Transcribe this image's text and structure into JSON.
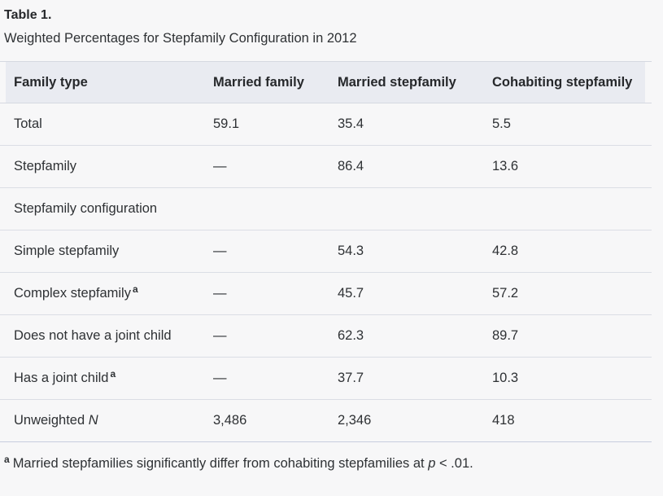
{
  "page": {
    "title": "Table 1.",
    "subtitle": "Weighted Percentages for Stepfamily Configuration in 2012"
  },
  "table": {
    "columns": [
      "Family type",
      "Married family",
      "Married stepfamily",
      "Cohabiting stepfamily"
    ],
    "rows": [
      {
        "label": "Total",
        "label_italic": "",
        "sup": "",
        "values": [
          "59.1",
          "35.4",
          "5.5"
        ]
      },
      {
        "label": "Stepfamily",
        "label_italic": "",
        "sup": "",
        "values": [
          "—",
          "86.4",
          "13.6"
        ]
      },
      {
        "label": "Stepfamily configuration",
        "label_italic": "",
        "sup": "",
        "values": [
          "",
          "",
          ""
        ]
      },
      {
        "label": "Simple stepfamily",
        "label_italic": "",
        "sup": "",
        "values": [
          "—",
          "54.3",
          "42.8"
        ]
      },
      {
        "label": "Complex stepfamily",
        "label_italic": "",
        "sup": "a",
        "values": [
          "—",
          "45.7",
          "57.2"
        ]
      },
      {
        "label": "Does not have a joint child",
        "label_italic": "",
        "sup": "",
        "values": [
          "—",
          "62.3",
          "89.7"
        ]
      },
      {
        "label": "Has a joint child",
        "label_italic": "",
        "sup": "a",
        "values": [
          "—",
          "37.7",
          "10.3"
        ]
      },
      {
        "label": "Unweighted ",
        "label_italic": "N",
        "sup": "",
        "values": [
          "3,486",
          "2,346",
          "418"
        ]
      }
    ]
  },
  "footnote": {
    "marker": "a",
    "text_before": "Married stepfamilies significantly differ from cohabiting stepfamilies at ",
    "italic_p": "p",
    "text_after": " < .01."
  },
  "colors": {
    "page_bg": "#f7f7f8",
    "header_bg": "#e9ebf1",
    "row_border": "#dbdee5",
    "table_end_border": "#c7cdde",
    "text": "#2e3134"
  }
}
